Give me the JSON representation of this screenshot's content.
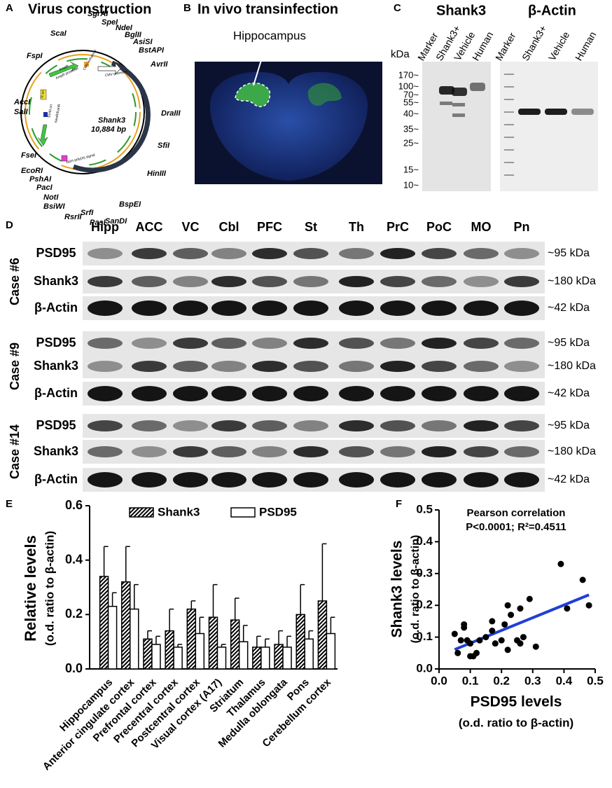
{
  "panel_a": {
    "label": "A",
    "title": "Virus construction",
    "plasmid_name": "Shank3",
    "plasmid_size": "10,884 bp",
    "sites": [
      "ScaI",
      "FspI",
      "SgrAI",
      "SpeI",
      "NdeI",
      "BglII",
      "AsiSI",
      "BstAPI",
      "AvrII",
      "DraIII",
      "SfiI",
      "HinIII",
      "BspEI",
      "SanDI",
      "PasI",
      "SrfI",
      "RsrII",
      "BsiWI",
      "NotI",
      "PacI",
      "PshAI",
      "EcoRI",
      "FseI",
      "SalI",
      "AccI"
    ],
    "features": [
      "AmpR promoter",
      "AmpR",
      "CMV enhancer",
      "CMV promoter",
      "bGH poly(A) signal",
      "f1 ori",
      "SV40 ori",
      "NeoR/KanR"
    ]
  },
  "panel_b": {
    "label": "B",
    "title": "In vivo transinfection",
    "annotation": "Hippocampus"
  },
  "panel_c": {
    "label": "C",
    "unit": "kDa",
    "blots": [
      {
        "title": "Shank3",
        "lanes": [
          "Marker",
          "Shank3+",
          "Vehicle",
          "Human"
        ]
      },
      {
        "title": "β-Actin",
        "lanes": [
          "Marker",
          "Shank3+",
          "Vehicle",
          "Human"
        ]
      }
    ],
    "markers": [
      "170~",
      "100~",
      "70~",
      "55~",
      "40~",
      "35~",
      "25~",
      "15~",
      "10~"
    ]
  },
  "panel_d": {
    "label": "D",
    "regions": [
      "Hipp",
      "ACC",
      "VC",
      "Cbl",
      "PFC",
      "St",
      "Th",
      "PrC",
      "PoC",
      "MO",
      "Pn"
    ],
    "cases": [
      {
        "name": "Case #6",
        "rows": [
          {
            "protein": "PSD95",
            "size": "~95 kDa"
          },
          {
            "protein": "Shank3",
            "size": "~180 kDa"
          },
          {
            "protein": "β-Actin",
            "size": "~42 kDa"
          }
        ]
      },
      {
        "name": "Case #9",
        "rows": [
          {
            "protein": "PSD95",
            "size": "~95 kDa"
          },
          {
            "protein": "Shank3",
            "size": "~180 kDa"
          },
          {
            "protein": "β-Actin",
            "size": "~42 kDa"
          }
        ]
      },
      {
        "name": "Case #14",
        "rows": [
          {
            "protein": "PSD95",
            "size": "~95 kDa"
          },
          {
            "protein": "Shank3",
            "size": "~180 kDa"
          },
          {
            "protein": "β-Actin",
            "size": "~42 kDa"
          }
        ]
      }
    ]
  },
  "chart_data": [
    {
      "type": "bar",
      "panel_label": "E",
      "ylabel": "Relative levels",
      "ylabel_sub": "(o.d. ratio to β-actin)",
      "categories": [
        "Hippocampus",
        "Anterior cingulate cortex",
        "Prefrontal cortex",
        "Precentral cortex",
        "Postcentral cortex",
        "Visual cortex (A17)",
        "Striatum",
        "Thalamus",
        "Medulla oblongata",
        "Pons",
        "Cerebellum cortex"
      ],
      "series": [
        {
          "name": "Shank3",
          "color": "#000000",
          "hatch": true,
          "values": [
            0.34,
            0.32,
            0.11,
            0.14,
            0.22,
            0.19,
            0.18,
            0.08,
            0.09,
            0.2,
            0.25
          ],
          "errors": [
            0.11,
            0.13,
            0.03,
            0.08,
            0.03,
            0.12,
            0.08,
            0.04,
            0.05,
            0.11,
            0.21
          ]
        },
        {
          "name": "PSD95",
          "color": "#ffffff",
          "hatch": false,
          "values": [
            0.23,
            0.22,
            0.09,
            0.08,
            0.13,
            0.08,
            0.1,
            0.08,
            0.08,
            0.11,
            0.13
          ],
          "errors": [
            0.05,
            0.09,
            0.03,
            0.01,
            0.06,
            0.01,
            0.06,
            0.03,
            0.04,
            0.03,
            0.06
          ]
        }
      ],
      "ylim": [
        0,
        0.6
      ],
      "yticks": [
        {
          "value": 0,
          "label": "0.0"
        },
        0.2,
        0.4,
        0.6
      ],
      "legend": "top"
    },
    {
      "type": "scatter",
      "panel_label": "F",
      "xlabel": "PSD95 levels",
      "xlabel_sub": "(o.d. ratio to β-actin)",
      "ylabel": "Shank3 levels",
      "ylabel_sub": "(o.d. ratio to β-actin)",
      "annotations": [
        "Pearson correlation",
        "P<0.0001; R²=0.4511"
      ],
      "color": "#000000",
      "x": [
        0.05,
        0.06,
        0.07,
        0.08,
        0.08,
        0.09,
        0.1,
        0.1,
        0.11,
        0.12,
        0.13,
        0.15,
        0.17,
        0.17,
        0.18,
        0.2,
        0.21,
        0.22,
        0.22,
        0.23,
        0.25,
        0.26,
        0.26,
        0.27,
        0.29,
        0.31,
        0.39,
        0.41,
        0.46,
        0.48
      ],
      "values": [
        0.11,
        0.05,
        0.09,
        0.13,
        0.14,
        0.09,
        0.04,
        0.08,
        0.04,
        0.05,
        0.09,
        0.1,
        0.12,
        0.15,
        0.08,
        0.09,
        0.14,
        0.2,
        0.06,
        0.17,
        0.09,
        0.08,
        0.19,
        0.1,
        0.22,
        0.07,
        0.33,
        0.19,
        0.28,
        0.2
      ],
      "fit": {
        "color": "#1f3fd6",
        "x": [
          0.05,
          0.48
        ],
        "values": [
          0.061,
          0.233
        ]
      },
      "xlim": [
        0,
        0.5
      ],
      "xticks": [
        {
          "value": 0,
          "label": "0.0"
        },
        0.1,
        0.2,
        0.3,
        0.4,
        0.5
      ],
      "ylim": [
        0,
        0.5
      ],
      "yticks": [
        {
          "value": 0,
          "label": "0.0"
        },
        0.1,
        0.2,
        0.3,
        0.4,
        0.5
      ]
    }
  ]
}
